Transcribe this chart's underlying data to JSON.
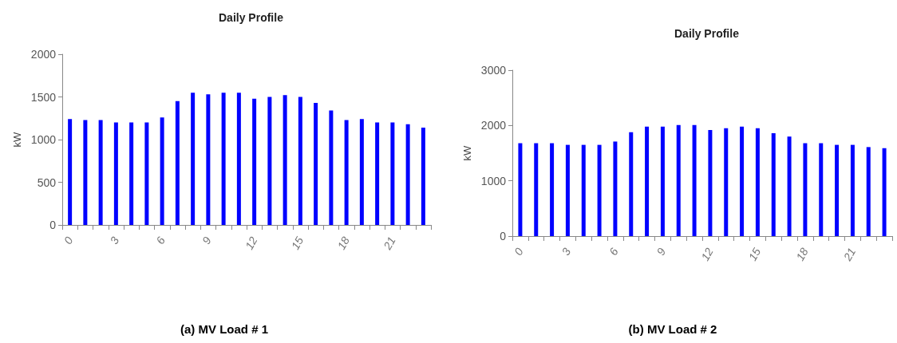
{
  "chart_data": [
    {
      "type": "bar",
      "title": "Daily Profile",
      "ylabel": "kW",
      "categories": [
        "0",
        null,
        null,
        "3",
        null,
        null,
        "6",
        null,
        null,
        "9",
        null,
        null,
        "12",
        null,
        null,
        "15",
        null,
        null,
        "18",
        null,
        null,
        "21",
        null,
        null
      ],
      "series": [
        {
          "color": "#0000ff",
          "values": [
            1240,
            1230,
            1230,
            1200,
            1200,
            1200,
            1260,
            1450,
            1550,
            1530,
            1550,
            1550,
            1480,
            1500,
            1520,
            1500,
            1430,
            1340,
            1230,
            1240,
            1200,
            1200,
            1180,
            1140
          ]
        }
      ],
      "ylim": [
        0,
        2000
      ],
      "yticks": [
        0,
        500,
        1000,
        1500,
        2000
      ],
      "grid": false,
      "annotations": [
        "(a) MV Load # 1"
      ]
    },
    {
      "type": "bar",
      "title": "Daily Profile",
      "ylabel": "kW",
      "categories": [
        "0",
        null,
        null,
        "3",
        null,
        null,
        "6",
        null,
        null,
        "9",
        null,
        null,
        "12",
        null,
        null,
        "15",
        null,
        null,
        "18",
        null,
        null,
        "21",
        null,
        null
      ],
      "series": [
        {
          "color": "#0000ff",
          "values": [
            1680,
            1680,
            1680,
            1650,
            1650,
            1650,
            1710,
            1880,
            1980,
            1980,
            2010,
            2010,
            1920,
            1950,
            1980,
            1950,
            1860,
            1800,
            1680,
            1680,
            1650,
            1650,
            1610,
            1590
          ]
        }
      ],
      "ylim": [
        0,
        3000
      ],
      "yticks": [
        0,
        1000,
        2000,
        3000
      ],
      "grid": false,
      "annotations": [
        "(b) MV Load # 2"
      ]
    }
  ]
}
